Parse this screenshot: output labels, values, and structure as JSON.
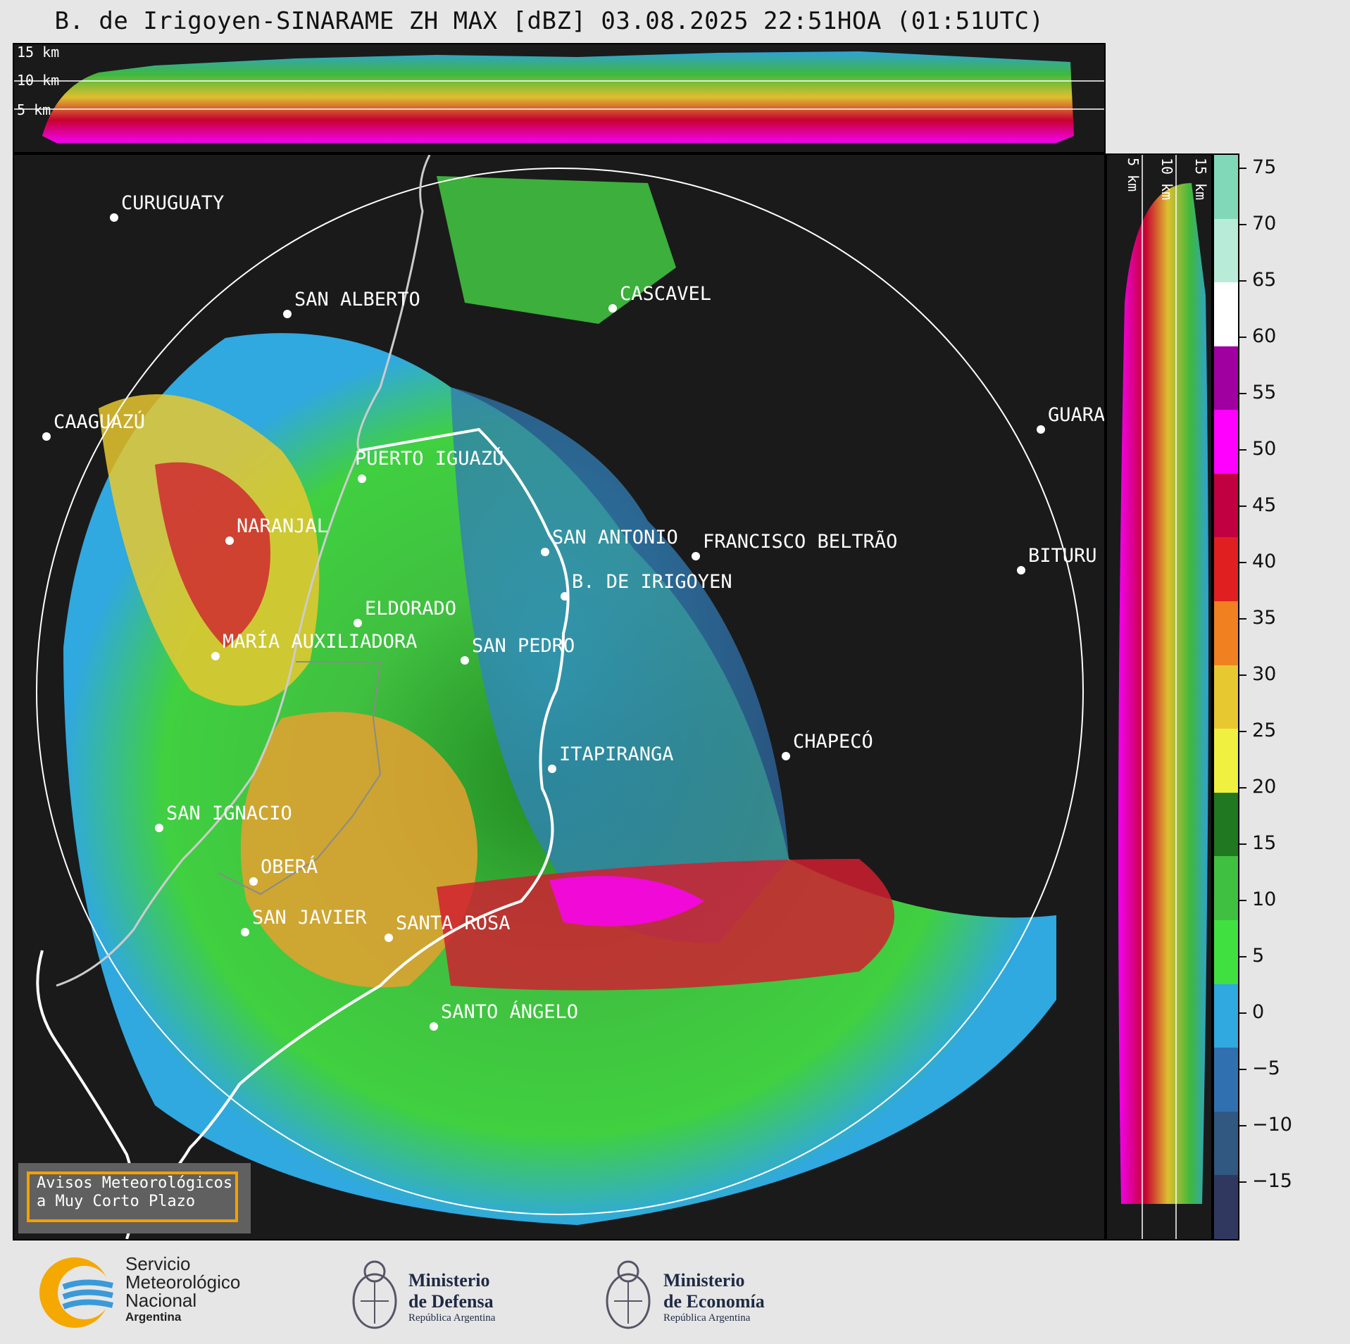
{
  "title": "B. de Irigoyen-SINARAME ZH MAX [dBZ] 03.08.2025 22:51HOA (01:51UTC)",
  "top_panel": {
    "height_labels": [
      "15 km",
      "10 km",
      "5 km"
    ]
  },
  "side_panel": {
    "height_labels": [
      "5 km",
      "10 km",
      "15 km"
    ]
  },
  "cities": [
    {
      "name": "CURUGUATY"
    },
    {
      "name": "SAN ALBERTO"
    },
    {
      "name": "CASCAVEL"
    },
    {
      "name": "GUARA"
    },
    {
      "name": "CAAGUAZÚ"
    },
    {
      "name": "PUERTO IGUAZÚ"
    },
    {
      "name": "NARANJAL"
    },
    {
      "name": "SAN ANTONIO"
    },
    {
      "name": "FRANCISCO BELTRÃO"
    },
    {
      "name": "BITURU"
    },
    {
      "name": "B. DE IRIGOYEN"
    },
    {
      "name": "ELDORADO"
    },
    {
      "name": "MARÍA AUXILIADORA"
    },
    {
      "name": "SAN PEDRO"
    },
    {
      "name": "ITAPIRANGA"
    },
    {
      "name": "CHAPECÓ"
    },
    {
      "name": "SAN IGNACIO"
    },
    {
      "name": "OBERÁ"
    },
    {
      "name": "SAN JAVIER"
    },
    {
      "name": "SANTA ROSA"
    },
    {
      "name": "SANTO ÁNGELO"
    }
  ],
  "colorbar": {
    "ticks": [
      "75",
      "70",
      "65",
      "60",
      "55",
      "50",
      "45",
      "40",
      "35",
      "30",
      "25",
      "20",
      "15",
      "10",
      "5",
      "0",
      "−5",
      "−10",
      "−15"
    ],
    "colors": [
      "#80d8b8",
      "#b8ecd8",
      "#ffffff",
      "#a000a0",
      "#ff00ff",
      "#c00040",
      "#e02020",
      "#f08020",
      "#e8c830",
      "#f0f040",
      "#207820",
      "#40c040",
      "#40e040",
      "#30a8e0",
      "#3070b0",
      "#305880",
      "#303860"
    ]
  },
  "warning": {
    "line1": "Avisos Meteorológicos",
    "line2": "a Muy Corto Plazo"
  },
  "footer": {
    "smn": {
      "line1": "Servicio",
      "line2": "Meteorológico",
      "line3": "Nacional",
      "line4": "Argentina"
    },
    "defensa": {
      "line1": "Ministerio",
      "line2": "de Defensa",
      "line3": "República Argentina"
    },
    "economia": {
      "line1": "Ministerio",
      "line2": "de Economía",
      "line3": "República Argentina"
    }
  }
}
